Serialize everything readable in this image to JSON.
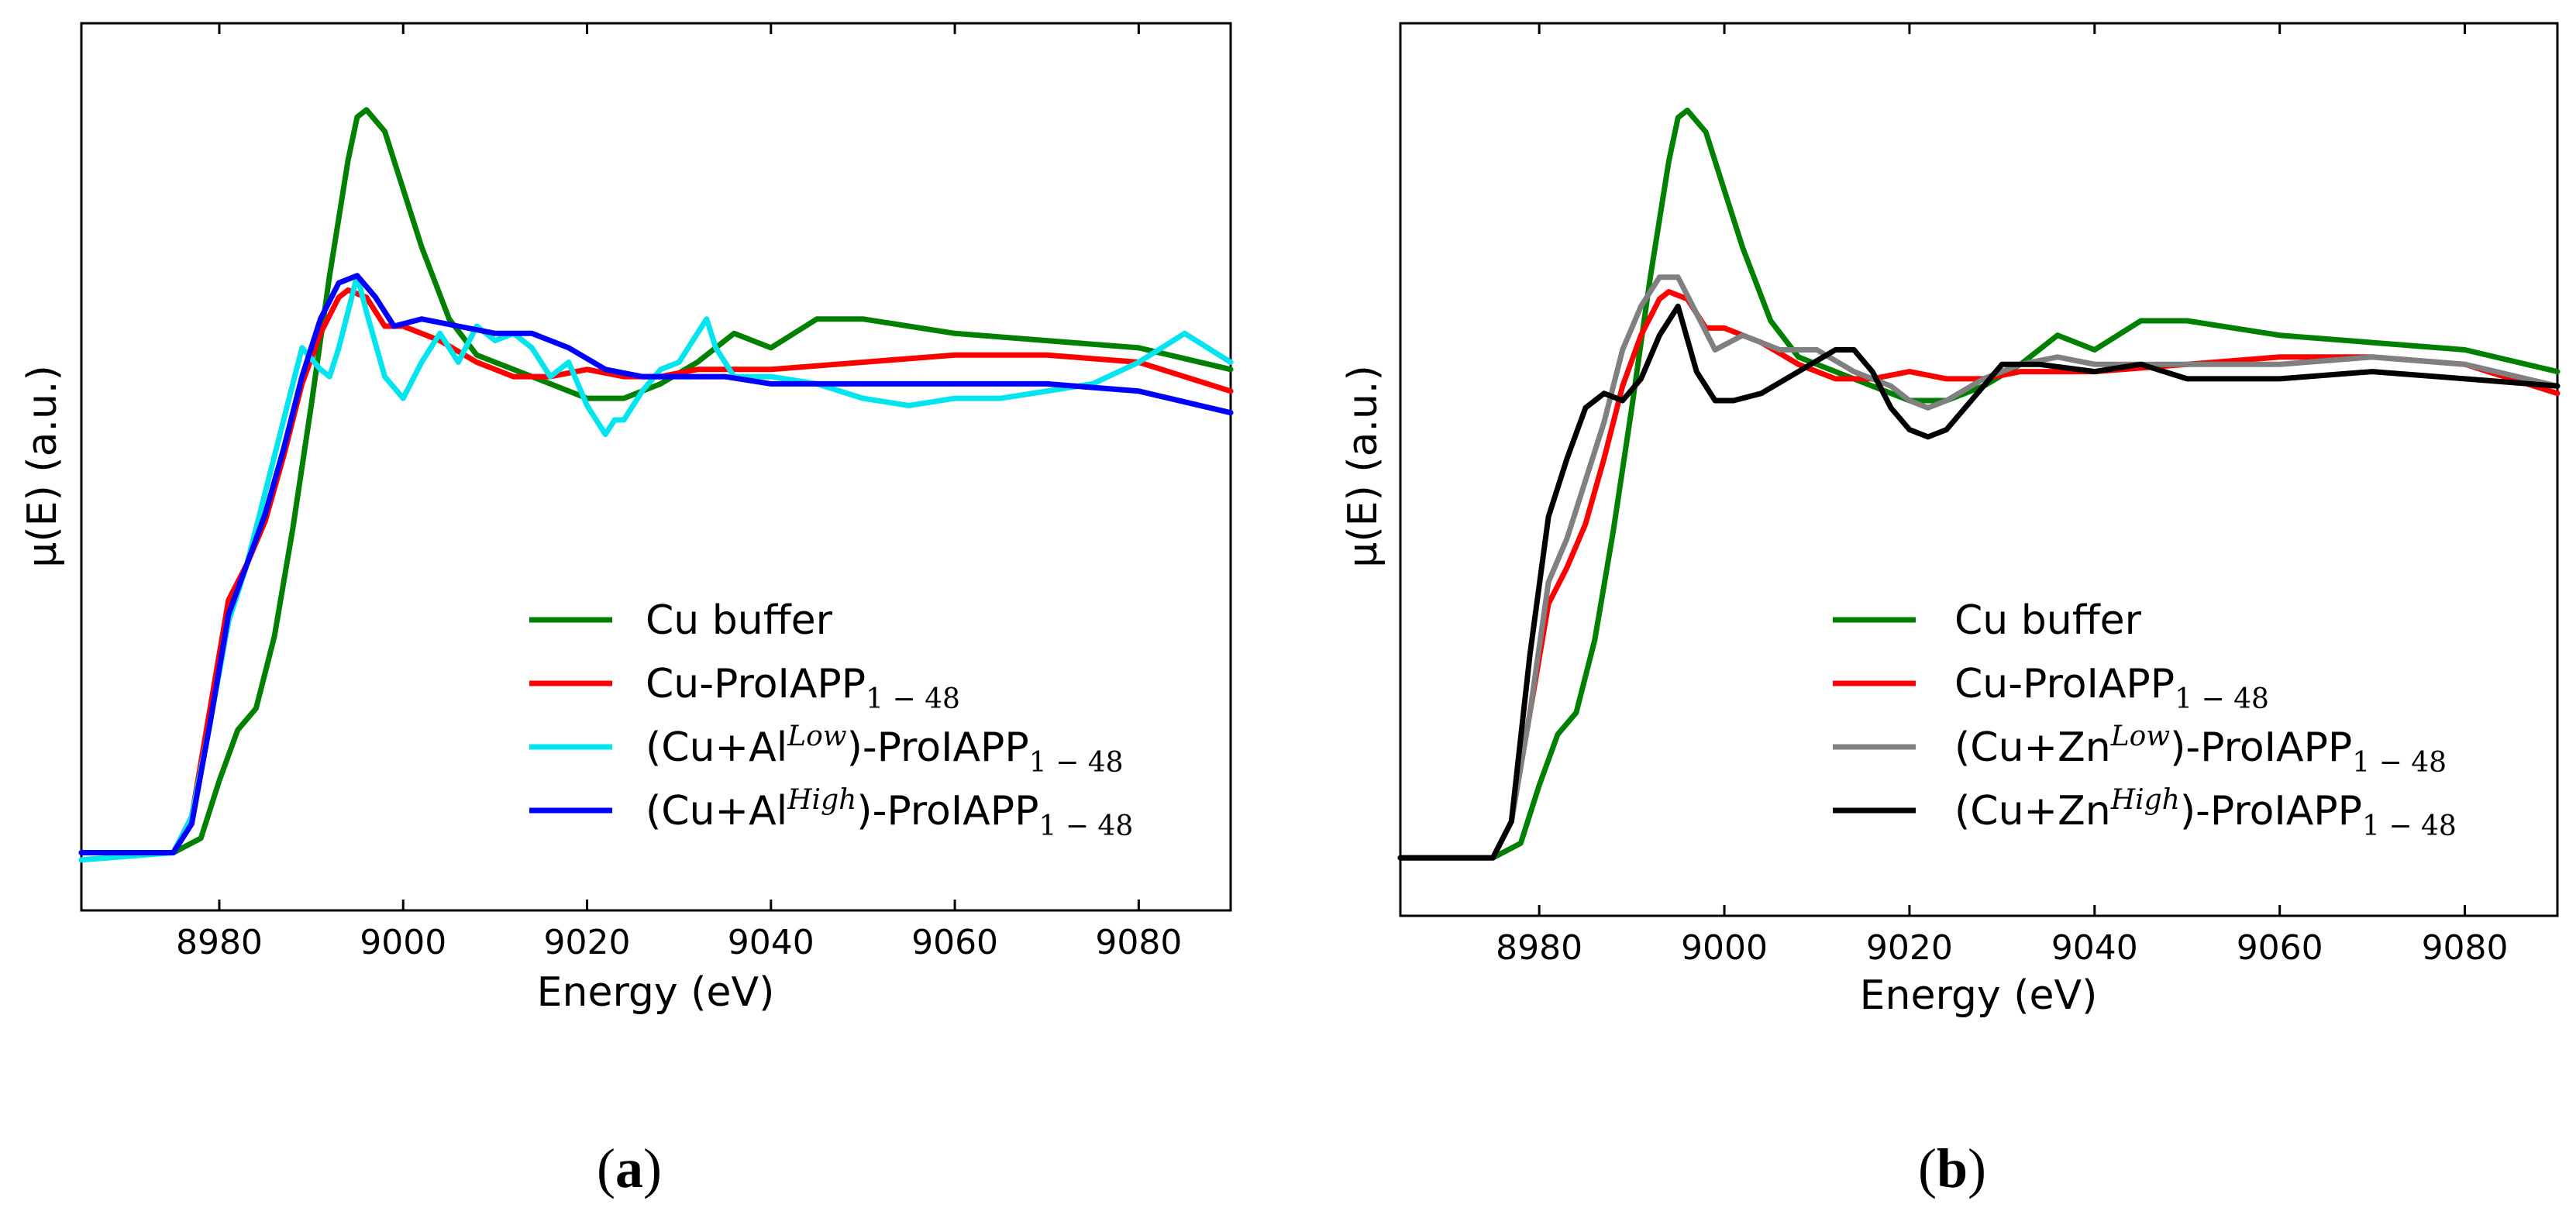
{
  "chart_data": [
    {
      "type": "line",
      "panel_label": "a",
      "xlabel": "Energy (eV)",
      "ylabel": "μ(E) (a.u.)",
      "xlim": [
        8965,
        9090
      ],
      "ylim": [
        -0.08,
        1.15
      ],
      "xticks": [
        8980,
        9000,
        9020,
        9040,
        9060,
        9080
      ],
      "yticks_shown": false,
      "legend_position": "lower-right",
      "series": [
        {
          "name": "Cu buffer",
          "base": "Cu buffer",
          "sup": "",
          "sub": "",
          "color": "#008000",
          "x": [
            8965,
            8975,
            8978,
            8980,
            8982,
            8984,
            8986,
            8988,
            8990,
            8992,
            8994,
            8995,
            8996,
            8998,
            9000,
            9002,
            9005,
            9008,
            9012,
            9016,
            9020,
            9024,
            9028,
            9032,
            9036,
            9040,
            9045,
            9050,
            9060,
            9070,
            9080,
            9090
          ],
          "values": [
            0.0,
            0.0,
            0.02,
            0.1,
            0.17,
            0.2,
            0.3,
            0.45,
            0.62,
            0.8,
            0.96,
            1.02,
            1.03,
            1.0,
            0.92,
            0.84,
            0.74,
            0.69,
            0.67,
            0.65,
            0.63,
            0.63,
            0.65,
            0.68,
            0.72,
            0.7,
            0.74,
            0.74,
            0.72,
            0.71,
            0.7,
            0.67
          ]
        },
        {
          "name": "Cu-ProIAPP1−48",
          "base": "Cu-ProIAPP",
          "sup": "",
          "sub": "1 − 48",
          "color": "#ff0000",
          "x": [
            8965,
            8975,
            8977,
            8979,
            8981,
            8983,
            8985,
            8987,
            8989,
            8991,
            8993,
            8994,
            8996,
            8998,
            9000,
            9004,
            9008,
            9012,
            9016,
            9020,
            9024,
            9028,
            9032,
            9040,
            9050,
            9060,
            9070,
            9080,
            9090
          ],
          "values": [
            0.0,
            0.0,
            0.05,
            0.2,
            0.35,
            0.4,
            0.46,
            0.55,
            0.65,
            0.72,
            0.77,
            0.78,
            0.77,
            0.73,
            0.73,
            0.71,
            0.68,
            0.66,
            0.66,
            0.67,
            0.66,
            0.66,
            0.67,
            0.67,
            0.68,
            0.69,
            0.69,
            0.68,
            0.64
          ]
        },
        {
          "name": "(Cu+AlLow)-ProIAPP1−48",
          "base": "(Cu+Al",
          "sup": "Low",
          "sub": "1 − 48",
          "color": "#00e5ee",
          "x": [
            8965,
            8975,
            8977,
            8979,
            8981,
            8983,
            8985,
            8987,
            8989,
            8991,
            8992,
            8993,
            8994,
            8995,
            8996,
            8998,
            9000,
            9002,
            9004,
            9006,
            9008,
            9010,
            9012,
            9014,
            9016,
            9018,
            9020,
            9021,
            9022,
            9023,
            9024,
            9026,
            9028,
            9030,
            9032,
            9033,
            9034,
            9036,
            9040,
            9045,
            9050,
            9055,
            9060,
            9065,
            9070,
            9075,
            9080,
            9085,
            9090
          ],
          "values": [
            -0.01,
            0.0,
            0.05,
            0.18,
            0.32,
            0.4,
            0.5,
            0.6,
            0.7,
            0.67,
            0.66,
            0.7,
            0.75,
            0.8,
            0.75,
            0.66,
            0.63,
            0.68,
            0.72,
            0.68,
            0.73,
            0.71,
            0.72,
            0.7,
            0.66,
            0.68,
            0.62,
            0.6,
            0.58,
            0.6,
            0.6,
            0.64,
            0.67,
            0.68,
            0.72,
            0.74,
            0.7,
            0.66,
            0.66,
            0.65,
            0.63,
            0.62,
            0.63,
            0.63,
            0.64,
            0.65,
            0.68,
            0.72,
            0.68
          ]
        },
        {
          "name": "(Cu+AlHigh)-ProIAPP1−48",
          "base": "(Cu+Al",
          "sup": "High",
          "sub": "1 − 48",
          "color": "#0000ff",
          "x": [
            8965,
            8975,
            8977,
            8979,
            8981,
            8983,
            8985,
            8987,
            8989,
            8991,
            8993,
            8995,
            8997,
            8999,
            9002,
            9006,
            9010,
            9014,
            9018,
            9022,
            9026,
            9030,
            9035,
            9040,
            9050,
            9060,
            9070,
            9080,
            9090
          ],
          "values": [
            0.0,
            0.0,
            0.04,
            0.18,
            0.33,
            0.4,
            0.47,
            0.56,
            0.66,
            0.74,
            0.79,
            0.8,
            0.77,
            0.73,
            0.74,
            0.73,
            0.72,
            0.72,
            0.7,
            0.67,
            0.66,
            0.66,
            0.66,
            0.65,
            0.65,
            0.65,
            0.65,
            0.64,
            0.61
          ]
        }
      ]
    },
    {
      "type": "line",
      "panel_label": "b",
      "xlabel": "Energy (eV)",
      "ylabel": "μ(E) (a.u.)",
      "xlim": [
        8965,
        9090
      ],
      "ylim": [
        -0.08,
        1.15
      ],
      "xticks": [
        8980,
        9000,
        9020,
        9040,
        9060,
        9080
      ],
      "yticks_shown": false,
      "legend_position": "lower-right",
      "series": [
        {
          "name": "Cu buffer",
          "base": "Cu buffer",
          "sup": "",
          "sub": "",
          "color": "#008000",
          "x": [
            8965,
            8975,
            8978,
            8980,
            8982,
            8984,
            8986,
            8988,
            8990,
            8992,
            8994,
            8995,
            8996,
            8998,
            9000,
            9002,
            9005,
            9008,
            9012,
            9016,
            9020,
            9024,
            9028,
            9032,
            9036,
            9040,
            9045,
            9050,
            9060,
            9070,
            9080,
            9090
          ],
          "values": [
            0.0,
            0.0,
            0.02,
            0.1,
            0.17,
            0.2,
            0.3,
            0.45,
            0.62,
            0.8,
            0.96,
            1.02,
            1.03,
            1.0,
            0.92,
            0.84,
            0.74,
            0.69,
            0.67,
            0.65,
            0.63,
            0.63,
            0.65,
            0.68,
            0.72,
            0.7,
            0.74,
            0.74,
            0.72,
            0.71,
            0.7,
            0.67
          ]
        },
        {
          "name": "Cu-ProIAPP1−48",
          "base": "Cu-ProIAPP",
          "sup": "",
          "sub": "1 − 48",
          "color": "#ff0000",
          "x": [
            8965,
            8975,
            8977,
            8979,
            8981,
            8983,
            8985,
            8987,
            8989,
            8991,
            8993,
            8994,
            8996,
            8998,
            9000,
            9004,
            9008,
            9012,
            9016,
            9020,
            9024,
            9028,
            9032,
            9040,
            9050,
            9060,
            9070,
            9080,
            9090
          ],
          "values": [
            0.0,
            0.0,
            0.05,
            0.2,
            0.35,
            0.4,
            0.46,
            0.55,
            0.65,
            0.72,
            0.77,
            0.78,
            0.77,
            0.73,
            0.73,
            0.71,
            0.68,
            0.66,
            0.66,
            0.67,
            0.66,
            0.66,
            0.67,
            0.67,
            0.68,
            0.69,
            0.69,
            0.68,
            0.64
          ]
        },
        {
          "name": "(Cu+ZnLow)-ProIAPP1−48",
          "base": "(Cu+Zn",
          "sup": "Low",
          "sub": "1 − 48",
          "color": "#808080",
          "x": [
            8965,
            8975,
            8977,
            8979,
            8981,
            8983,
            8985,
            8987,
            8989,
            8991,
            8993,
            8995,
            8997,
            8999,
            9002,
            9006,
            9010,
            9014,
            9018,
            9020,
            9022,
            9024,
            9028,
            9032,
            9036,
            9040,
            9050,
            9060,
            9070,
            9080,
            9090
          ],
          "values": [
            0.0,
            0.0,
            0.05,
            0.2,
            0.38,
            0.44,
            0.52,
            0.6,
            0.7,
            0.76,
            0.8,
            0.8,
            0.75,
            0.7,
            0.72,
            0.7,
            0.7,
            0.67,
            0.65,
            0.63,
            0.62,
            0.63,
            0.66,
            0.68,
            0.69,
            0.68,
            0.68,
            0.68,
            0.69,
            0.68,
            0.65
          ]
        },
        {
          "name": "(Cu+ZnHigh)-ProIAPP1−48",
          "base": "(Cu+Zn",
          "sup": "High",
          "sub": "1 − 48",
          "color": "#000000",
          "x": [
            8965,
            8975,
            8977,
            8979,
            8981,
            8983,
            8985,
            8987,
            8989,
            8991,
            8993,
            8995,
            8997,
            8999,
            9001,
            9004,
            9008,
            9012,
            9014,
            9016,
            9018,
            9020,
            9022,
            9024,
            9026,
            9030,
            9034,
            9040,
            9045,
            9050,
            9060,
            9070,
            9080,
            9090
          ],
          "values": [
            0.0,
            0.0,
            0.05,
            0.28,
            0.47,
            0.55,
            0.62,
            0.64,
            0.63,
            0.66,
            0.72,
            0.76,
            0.67,
            0.63,
            0.63,
            0.64,
            0.67,
            0.7,
            0.7,
            0.67,
            0.62,
            0.59,
            0.58,
            0.59,
            0.62,
            0.68,
            0.68,
            0.67,
            0.68,
            0.66,
            0.66,
            0.67,
            0.66,
            0.65
          ]
        }
      ]
    }
  ]
}
